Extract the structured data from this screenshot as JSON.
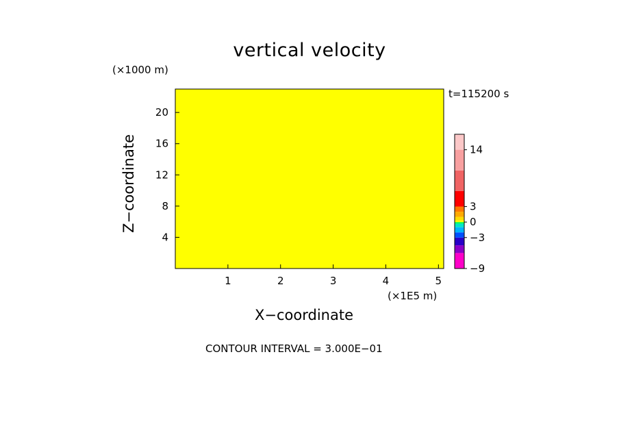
{
  "chart_data": {
    "type": "heatmap",
    "title": "vertical velocity",
    "xlabel": "X−coordinate",
    "ylabel": "Z−coordinate",
    "x_unit": "(×1E5 m)",
    "y_unit": "(×1000 m)",
    "time_label": "t=115200 s",
    "annotation": "CONTOUR INTERVAL = 3.000E−01",
    "xlim": [
      0,
      5.1
    ],
    "ylim": [
      0,
      23
    ],
    "x_ticks": [
      1,
      2,
      3,
      4,
      5
    ],
    "y_ticks": [
      4,
      8,
      12,
      16,
      20
    ],
    "colorbar": {
      "tick_labels": [
        {
          "label": "14",
          "value": 14
        },
        {
          "label": "3",
          "value": 3
        },
        {
          "label": "0",
          "value": 0
        },
        {
          "label": "−3",
          "value": -3
        },
        {
          "label": "−9",
          "value": -9
        }
      ],
      "bins": [
        {
          "from": -9,
          "to": -6,
          "color": "#ff00c8"
        },
        {
          "from": -6,
          "to": -4.5,
          "color": "#8c00c8"
        },
        {
          "from": -4.5,
          "to": -3,
          "color": "#2800c8"
        },
        {
          "from": -3,
          "to": -2,
          "color": "#0050ff"
        },
        {
          "from": -2,
          "to": -1,
          "color": "#00b4ff"
        },
        {
          "from": -1,
          "to": -0.3,
          "color": "#00e6c8"
        },
        {
          "from": -0.3,
          "to": 0,
          "color": "#00ff50"
        },
        {
          "from": 0,
          "to": 0.3,
          "color": "#ffff00"
        },
        {
          "from": 0.3,
          "to": 1,
          "color": "#ffdc00"
        },
        {
          "from": 1,
          "to": 2,
          "color": "#ffaa00"
        },
        {
          "from": 2,
          "to": 3,
          "color": "#ff7800"
        },
        {
          "from": 3,
          "to": 6,
          "color": "#ff0000"
        },
        {
          "from": 6,
          "to": 10,
          "color": "#f06464"
        },
        {
          "from": 10,
          "to": 14,
          "color": "#f8a0a0"
        },
        {
          "from": 14,
          "to": 17,
          "color": "#fcc8c8"
        }
      ]
    },
    "field_colors": {
      "negative": "#00ff50",
      "positive": "#ffff00"
    },
    "dominant_levels": [
      -0.3,
      0.3
    ]
  }
}
